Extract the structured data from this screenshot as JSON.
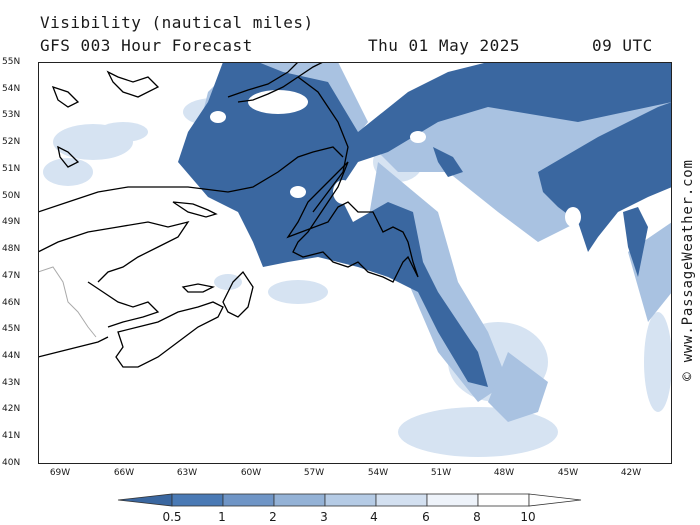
{
  "title": {
    "product": "Visibility (nautical miles)",
    "forecast": "GFS 003 Hour Forecast",
    "date": "Thu 01 May 2025",
    "time": "09 UTC"
  },
  "credit": "© www.PassageWeather.com",
  "lat_labels": [
    "55N",
    "54N",
    "53N",
    "52N",
    "51N",
    "50N",
    "49N",
    "48N",
    "47N",
    "46N",
    "45N",
    "44N",
    "43N",
    "42N",
    "41N",
    "40N"
  ],
  "lon_labels": [
    "69W",
    "66W",
    "63W",
    "60W",
    "57W",
    "54W",
    "51W",
    "48W",
    "45W",
    "42W"
  ],
  "legend": {
    "labels": [
      "0.5",
      "1",
      "2",
      "3",
      "4",
      "6",
      "8",
      "10"
    ],
    "colors": [
      "#3a67a0",
      "#4a7ab5",
      "#6f95c6",
      "#94b2d6",
      "#b5cbe5",
      "#d3e0f0",
      "#eef3fa",
      "#ffffff"
    ]
  },
  "colors": {
    "low_vis": "#3a67a0",
    "mid_vis": "#a9c2e1",
    "light_vis": "#d6e3f2",
    "coast": "#000000"
  }
}
